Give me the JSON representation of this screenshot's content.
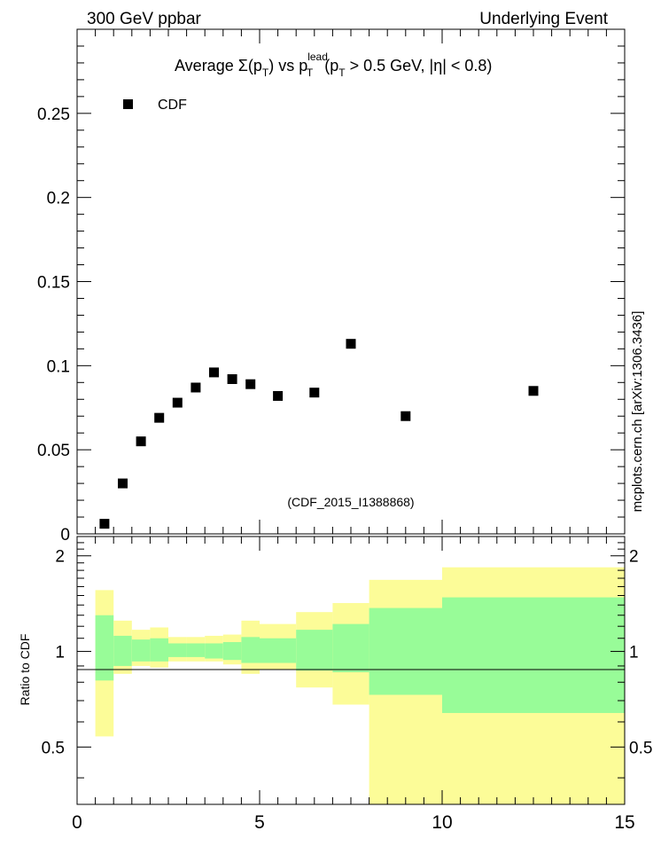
{
  "header": {
    "left": "300 GeV ppbar",
    "right": "Underlying Event"
  },
  "side_label": "mcplots.cern.ch [arXiv:1306.3436]",
  "chart_data": {
    "type": "scatter",
    "title": {
      "prefix": "Average ",
      "sigma": "Σ(p",
      "sub_T": "T",
      "mid": ") vs p",
      "sup_lead": "lead",
      "mid2": " (p",
      "suffix": " > 0.5 GeV, |η| < 0.8)"
    },
    "analysis_label": "(CDF_2015_I1388868)",
    "legend": [
      {
        "name": "CDF",
        "marker": "square",
        "color": "#000000"
      }
    ],
    "xlim": [
      0,
      15
    ],
    "main": {
      "ylim": [
        0,
        0.3
      ],
      "yticks": [
        0,
        0.05,
        0.1,
        0.15,
        0.2,
        0.25
      ],
      "ytick_labels": [
        "0",
        "0.05",
        "0.1",
        "0.15",
        "0.2",
        "0.25"
      ],
      "series": [
        {
          "name": "CDF",
          "x": [
            0.75,
            1.25,
            1.75,
            2.25,
            2.75,
            3.25,
            3.75,
            4.25,
            4.75,
            5.5,
            6.5,
            7.5,
            9.0,
            12.5
          ],
          "y": [
            0.006,
            0.03,
            0.055,
            0.069,
            0.078,
            0.087,
            0.096,
            0.092,
            0.089,
            0.082,
            0.084,
            0.113,
            0.07,
            0.085
          ]
        }
      ]
    },
    "ratio": {
      "ylabel": "Ratio to CDF",
      "ylim": [
        0.33,
        2.3
      ],
      "yticks": [
        0.5,
        1,
        2
      ],
      "ytick_labels": [
        "0.5",
        "1",
        "2"
      ],
      "xticks": [
        0,
        5,
        10,
        15
      ],
      "xtick_labels": [
        "0",
        "5",
        "10",
        "15"
      ],
      "bins": [
        {
          "lo": 0.5,
          "hi": 1.0,
          "g_lo": 0.81,
          "g_hi": 1.3,
          "y_lo": 0.54,
          "y_hi": 1.56
        },
        {
          "lo": 1.0,
          "hi": 1.5,
          "g_lo": 0.9,
          "g_hi": 1.12,
          "y_lo": 0.85,
          "y_hi": 1.25
        },
        {
          "lo": 1.5,
          "hi": 2.0,
          "g_lo": 0.93,
          "g_hi": 1.09,
          "y_lo": 0.9,
          "y_hi": 1.17
        },
        {
          "lo": 2.0,
          "hi": 2.5,
          "g_lo": 0.93,
          "g_hi": 1.1,
          "y_lo": 0.89,
          "y_hi": 1.19
        },
        {
          "lo": 2.5,
          "hi": 3.0,
          "g_lo": 0.96,
          "g_hi": 1.06,
          "y_lo": 0.93,
          "y_hi": 1.11
        },
        {
          "lo": 3.0,
          "hi": 3.5,
          "g_lo": 0.96,
          "g_hi": 1.06,
          "y_lo": 0.93,
          "y_hi": 1.11
        },
        {
          "lo": 3.5,
          "hi": 4.0,
          "g_lo": 0.95,
          "g_hi": 1.06,
          "y_lo": 0.93,
          "y_hi": 1.12
        },
        {
          "lo": 4.0,
          "hi": 4.5,
          "g_lo": 0.94,
          "g_hi": 1.07,
          "y_lo": 0.91,
          "y_hi": 1.13
        },
        {
          "lo": 4.5,
          "hi": 5.0,
          "g_lo": 0.92,
          "g_hi": 1.11,
          "y_lo": 0.85,
          "y_hi": 1.25
        },
        {
          "lo": 5.0,
          "hi": 6.0,
          "g_lo": 0.92,
          "g_hi": 1.1,
          "y_lo": 0.88,
          "y_hi": 1.22
        },
        {
          "lo": 6.0,
          "hi": 7.0,
          "g_lo": 0.87,
          "g_hi": 1.17,
          "y_lo": 0.77,
          "y_hi": 1.33
        },
        {
          "lo": 7.0,
          "hi": 8.0,
          "g_lo": 0.86,
          "g_hi": 1.22,
          "y_lo": 0.68,
          "y_hi": 1.42
        },
        {
          "lo": 8.0,
          "hi": 10.0,
          "g_lo": 0.73,
          "g_hi": 1.37,
          "y_lo": 0.33,
          "y_hi": 1.68
        },
        {
          "lo": 10.0,
          "hi": 15.0,
          "g_lo": 0.64,
          "g_hi": 1.48,
          "y_lo": 0.33,
          "y_hi": 1.84
        }
      ]
    },
    "colors": {
      "green_band": "#98fc98",
      "yellow_band": "#fcfc98",
      "marker": "#000000",
      "analysis_label": "#888888",
      "side_label": "#666666"
    }
  }
}
